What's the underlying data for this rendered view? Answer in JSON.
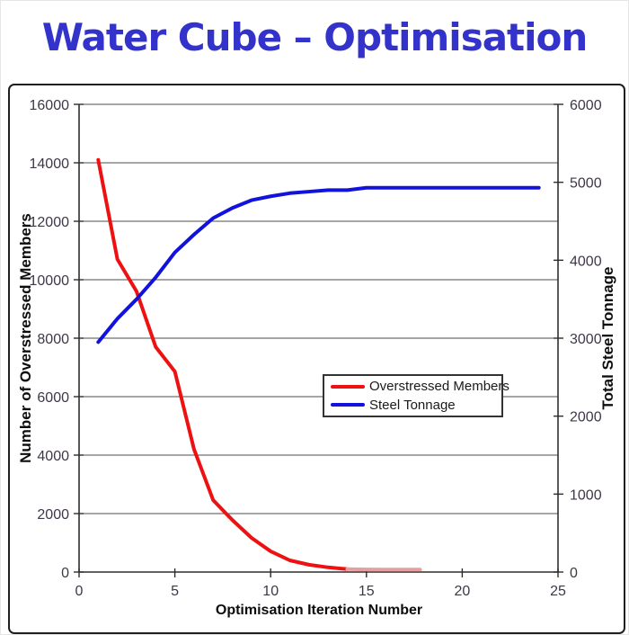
{
  "page": {
    "title": "Water Cube – Optimisation",
    "title_color": "#3333cc"
  },
  "chart_data": {
    "type": "line",
    "title": "Water Cube – Optimisation",
    "xlabel": "Optimisation Iteration Number",
    "ylabel_left": "Number of Overstressed Members",
    "ylabel_right": "Total Steel Tonnage",
    "grid": true,
    "legend_position": "center-right-inside",
    "x_axis": {
      "min": 0,
      "max": 25,
      "ticks": [
        0,
        5,
        10,
        15,
        20,
        25
      ]
    },
    "y_axis_left": {
      "min": 0,
      "max": 16000,
      "ticks": [
        0,
        2000,
        4000,
        6000,
        8000,
        10000,
        12000,
        14000,
        16000
      ]
    },
    "y_axis_right": {
      "min": 0,
      "max": 6000,
      "ticks": [
        0,
        1000,
        2000,
        3000,
        4000,
        5000,
        6000
      ]
    },
    "series": [
      {
        "name": "Overstressed Members",
        "axis": "left",
        "color": "#ee1111",
        "in_legend": true,
        "x": [
          1,
          2,
          3,
          4,
          5,
          6,
          7,
          8,
          9,
          10,
          11,
          12,
          13,
          14
        ],
        "values": [
          14100,
          10700,
          9600,
          7700,
          6860,
          4200,
          2460,
          1780,
          1170,
          710,
          400,
          250,
          160,
          100
        ]
      },
      {
        "name": "Overstressed Members faded tail",
        "axis": "left",
        "color": "#e79e9e",
        "in_legend": false,
        "x": [
          14,
          15,
          16,
          17,
          17.8
        ],
        "values": [
          100,
          90,
          85,
          85,
          85
        ]
      },
      {
        "name": "Steel Tonnage",
        "axis": "right",
        "color": "#1212dd",
        "in_legend": true,
        "x": [
          1,
          2,
          3,
          4,
          5,
          6,
          7,
          8,
          9,
          10,
          11,
          12,
          13,
          14,
          15,
          16,
          17,
          18,
          19,
          20,
          21,
          22,
          23,
          24
        ],
        "values": [
          2950,
          3250,
          3500,
          3780,
          4100,
          4330,
          4540,
          4670,
          4770,
          4820,
          4860,
          4880,
          4900,
          4900,
          4930,
          4930,
          4930,
          4930,
          4930,
          4930,
          4930,
          4930,
          4930,
          4930
        ]
      }
    ],
    "legend": {
      "entries": [
        {
          "label": "Overstressed Members",
          "color": "#ee1111"
        },
        {
          "label": "Steel Tonnage",
          "color": "#1212dd"
        }
      ]
    },
    "colors": {
      "gridline": "#4d4d4d",
      "axis_line": "#2e2e2e",
      "tick_label": "#3f3749",
      "axis_title": "#0d0d0d"
    }
  }
}
